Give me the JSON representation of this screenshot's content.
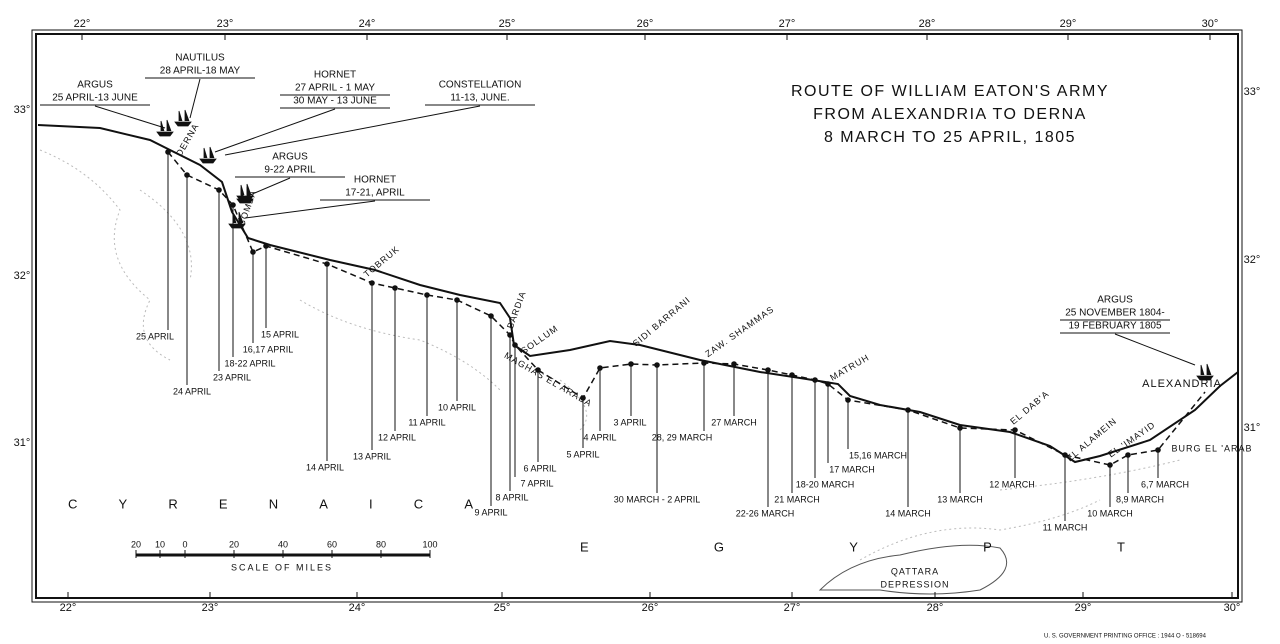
{
  "title": [
    "ROUTE OF WILLIAM EATON'S ARMY",
    "FROM ALEXANDRIA TO DERNA",
    "8 MARCH TO 25 APRIL, 1805"
  ],
  "longitudes": [
    "22°",
    "23°",
    "24°",
    "25°",
    "26°",
    "27°",
    "28°",
    "29°",
    "30°"
  ],
  "latitudes": [
    "33°",
    "32°",
    "31°"
  ],
  "ships": [
    {
      "lines": [
        "ARGUS",
        "25 APRIL-13 JUNE"
      ]
    },
    {
      "lines": [
        "NAUTILUS",
        "28 APRIL-18 MAY"
      ]
    },
    {
      "lines": [
        "HORNET",
        "27 APRIL - 1 MAY",
        "30 MAY - 13 JUNE"
      ]
    },
    {
      "lines": [
        "CONSTELLATION",
        "11-13, JUNE."
      ]
    },
    {
      "lines": [
        "ARGUS",
        "9-22 APRIL"
      ]
    },
    {
      "lines": [
        "HORNET",
        "17-21, APRIL"
      ]
    },
    {
      "lines": [
        "ARGUS",
        "25 NOVEMBER 1804-",
        "19 FEBRUARY 1805"
      ]
    }
  ],
  "places": [
    "DERNA",
    "BOMBA",
    "TOBRUK",
    "BARDIA",
    "SOLLUM",
    "MAGHAS EL ARABA",
    "SIDI BARRANI",
    "ZAW. SHAMMAS",
    "MATRUH",
    "EL DAB'A",
    "EL ALAMEIN",
    "EL 'IMAYID",
    "BURG EL 'ARAB",
    "ALEXANDRIA",
    "QATTARA",
    "DEPRESSION"
  ],
  "route_dates": [
    "25 APRIL",
    "24 APRIL",
    "23 APRIL",
    "18-22 APRIL",
    "16,17 APRIL",
    "15 APRIL",
    "14 APRIL",
    "13 APRIL",
    "12 APRIL",
    "11 APRIL",
    "10 APRIL",
    "9 APRIL",
    "8 APRIL",
    "7 APRIL",
    "6 APRIL",
    "5 APRIL",
    "4 APRIL",
    "3 APRIL",
    "30 MARCH - 2 APRIL",
    "28, 29 MARCH",
    "27 MARCH",
    "22-26 MARCH",
    "21 MARCH",
    "18-20 MARCH",
    "17 MARCH",
    "15,16 MARCH",
    "14 MARCH",
    "13 MARCH",
    "12 MARCH",
    "11 MARCH",
    "10 MARCH",
    "8,9 MARCH",
    "6,7 MARCH"
  ],
  "scale": {
    "ticks": [
      "20",
      "10",
      "0",
      "20",
      "40",
      "60",
      "80",
      "100"
    ],
    "label": "SCALE OF MILES"
  },
  "regions": [
    "CYRENAICA",
    "EGYPT"
  ],
  "credit": "U. S. GOVERNMENT PRINTING OFFICE : 1944 O - 518694"
}
